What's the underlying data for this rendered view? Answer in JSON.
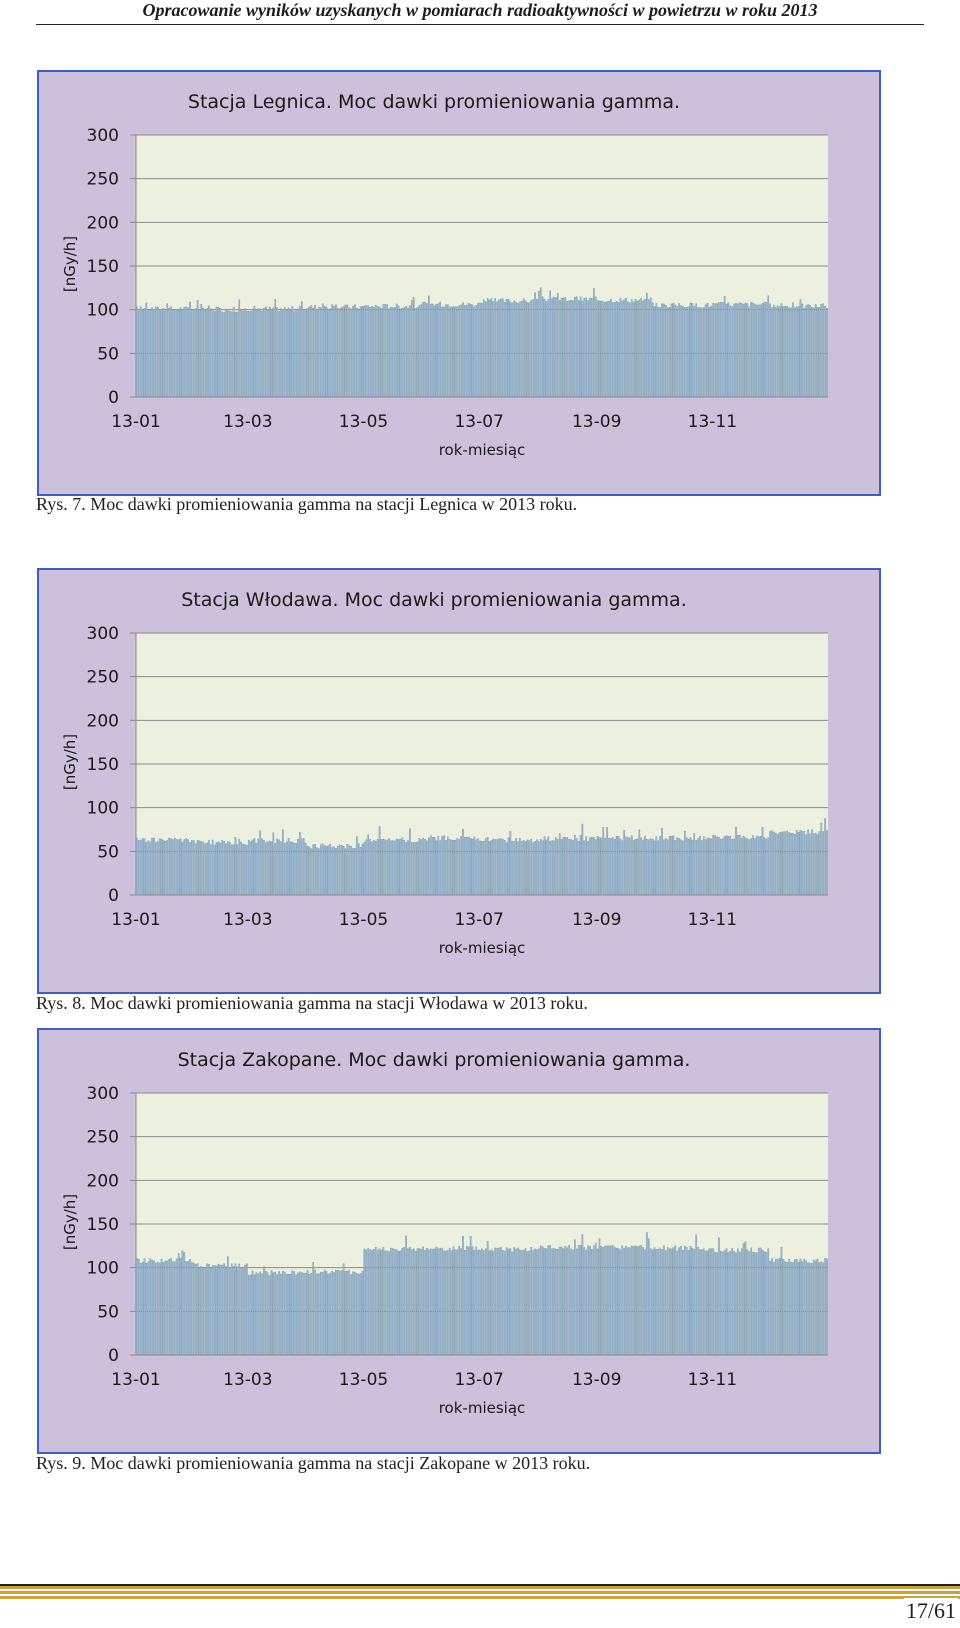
{
  "header": {
    "title": "Opracowanie wyników uzyskanych w pomiarach radioaktywności w powietrzu w roku 2013"
  },
  "figures": [
    {
      "caption": "Rys. 7. Moc dawki promieniowania gamma na stacji Legnica w 2013 roku."
    },
    {
      "caption": "Rys. 8. Moc dawki promieniowania gamma na stacji Włodawa w 2013 roku."
    },
    {
      "caption": "Rys. 9. Moc dawki promieniowania gamma na stacji Zakopane w 2013 roku."
    }
  ],
  "footer": {
    "page_number": "17/61"
  },
  "colors": {
    "chart_frame": "#ccc0da",
    "plot_area": "#ebf1de",
    "bar_fill": "#a5bfd3",
    "bar_edge": "#6d8eb0",
    "frame_border": "#3a5fcd"
  },
  "chart_data": [
    {
      "type": "bar",
      "title": "Stacja Legnica. Moc dawki promieniowania gamma.",
      "xlabel": "rok-miesiąc",
      "ylabel": "[nGy/h]",
      "ylim": [
        0,
        300
      ],
      "yticks": [
        0,
        50,
        100,
        150,
        200,
        250,
        300
      ],
      "xticks": [
        "13-01",
        "13-03",
        "13-05",
        "13-07",
        "13-09",
        "13-11"
      ],
      "grid": true,
      "frequency": "daily, 2013",
      "series_values": {
        "13-01": 101,
        "13-02": 100,
        "13-03": 101,
        "13-04": 103,
        "13-05": 104,
        "13-06": 106,
        "13-07": 110,
        "13-08": 112,
        "13-09": 111,
        "13-10": 105,
        "13-11": 106,
        "13-12": 104
      },
      "notes": "Daily values mostly in range ~95–125 nGy/h"
    },
    {
      "type": "bar",
      "title": "Stacja Włodawa. Moc dawki promieniowania gamma.",
      "xlabel": "rok-miesiąc",
      "ylabel": "[nGy/h]",
      "ylim": [
        0,
        300
      ],
      "yticks": [
        0,
        50,
        100,
        150,
        200,
        250,
        300
      ],
      "xticks": [
        "13-01",
        "13-03",
        "13-05",
        "13-07",
        "13-09",
        "13-11"
      ],
      "grid": true,
      "frequency": "daily, 2013",
      "series_values": {
        "13-01": 63,
        "13-02": 60,
        "13-03": 62,
        "13-04": 56,
        "13-05": 63,
        "13-06": 65,
        "13-07": 63,
        "13-08": 64,
        "13-09": 65,
        "13-10": 65,
        "13-11": 66,
        "13-12": 72
      },
      "notes": "Daily values mostly in range ~52–85 nGy/h"
    },
    {
      "type": "bar",
      "title": "Stacja Zakopane. Moc dawki promieniowania gamma.",
      "xlabel": "rok-miesiąc",
      "ylabel": "[nGy/h]",
      "ylim": [
        0,
        300
      ],
      "yticks": [
        0,
        50,
        100,
        150,
        200,
        250,
        300
      ],
      "xticks": [
        "13-01",
        "13-03",
        "13-05",
        "13-07",
        "13-09",
        "13-11"
      ],
      "grid": true,
      "frequency": "daily, 2013",
      "series_values": {
        "13-01": 108,
        "13-02": 102,
        "13-03": 94,
        "13-04": 95,
        "13-05": 121,
        "13-06": 122,
        "13-07": 121,
        "13-08": 123,
        "13-09": 123,
        "13-10": 122,
        "13-11": 120,
        "13-12": 108
      },
      "notes": "Daily values mostly in range ~90–135 nGy/h"
    }
  ]
}
